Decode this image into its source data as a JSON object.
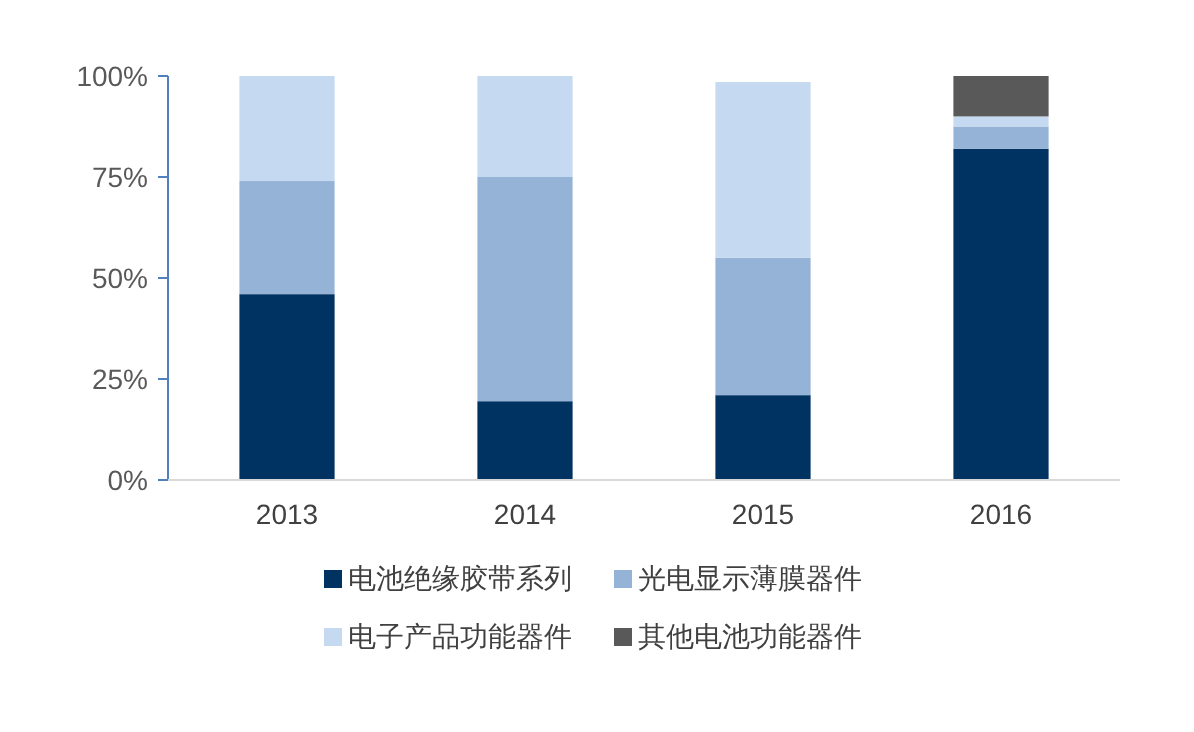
{
  "chart_data": {
    "type": "bar",
    "stacked": true,
    "categories": [
      "2013",
      "2014",
      "2015",
      "2016"
    ],
    "series": [
      {
        "name": "电池绝缘胶带系列",
        "color": "#003262",
        "values": [
          46,
          19.5,
          21,
          82
        ]
      },
      {
        "name": "光电显示薄膜器件",
        "color": "#95b3d7",
        "values": [
          28,
          55.5,
          34,
          5.5
        ]
      },
      {
        "name": "电子产品功能器件",
        "color": "#c5d9f1",
        "values": [
          26,
          25,
          43.5,
          2.5
        ]
      },
      {
        "name": "其他电池功能器件",
        "color": "#595959",
        "values": [
          0,
          0,
          0,
          10
        ]
      }
    ],
    "ylim": [
      0,
      100
    ],
    "yticks": [
      {
        "value": 0,
        "label": "0%"
      },
      {
        "value": 25,
        "label": "25%"
      },
      {
        "value": 50,
        "label": "50%"
      },
      {
        "value": 75,
        "label": "75%"
      },
      {
        "value": 100,
        "label": "100%"
      }
    ],
    "grid": false,
    "legend": "bottom"
  }
}
